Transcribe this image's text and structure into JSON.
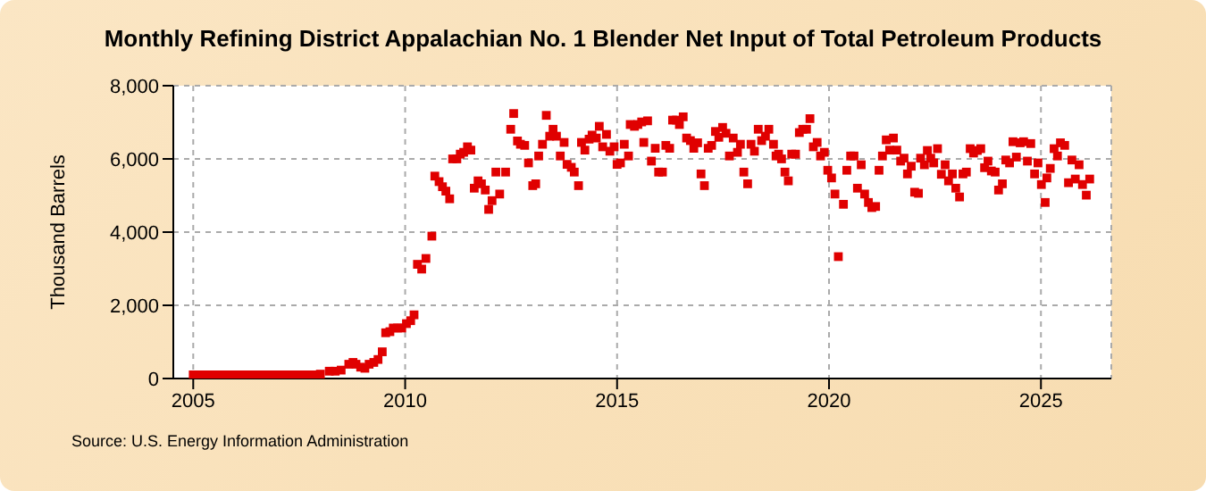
{
  "chart_data": {
    "type": "scatter",
    "title": "Monthly Refining District Appalachian No. 1 Blender Net Input of Total Petroleum Products",
    "ylabel": "Thousand Barrels",
    "annotations": [
      "Source: U.S. Energy Information Administration"
    ],
    "xlim": [
      2004.53,
      2026.66
    ],
    "xticks": [
      2005,
      2010,
      2015,
      2020,
      2025
    ],
    "ylim": [
      0,
      8000
    ],
    "yticks": [
      {
        "value": 0,
        "label": "0"
      },
      {
        "value": 2000,
        "label": "2,000"
      },
      {
        "value": 4000,
        "label": "4,000"
      },
      {
        "value": 6000,
        "label": "6,000"
      },
      {
        "value": 8000,
        "label": "8,000"
      }
    ],
    "grid": true,
    "marker": "square",
    "legend": false,
    "series": [
      {
        "color": "#e00000",
        "x": [
          2005.0,
          2005.17,
          2005.33,
          2005.5,
          2005.67,
          2005.83,
          2006.0,
          2006.17,
          2006.33,
          2006.5,
          2006.67,
          2006.83,
          2007.0,
          2007.17,
          2007.33,
          2007.5,
          2007.67,
          2007.83,
          2008.0,
          2008.21,
          2008.35,
          2008.49,
          2008.67,
          2008.77,
          2008.84,
          2008.95,
          2009.05,
          2009.15,
          2009.26,
          2009.36,
          2009.46,
          2009.54,
          2009.64,
          2009.72,
          2009.82,
          2009.92,
          2010.03,
          2010.13,
          2010.21,
          2010.29,
          2010.39,
          2010.49,
          2010.63,
          2010.7,
          2010.8,
          2010.88,
          2010.96,
          2011.05,
          2011.12,
          2011.22,
          2011.3,
          2011.38,
          2011.47,
          2011.55,
          2011.63,
          2011.72,
          2011.8,
          2011.89,
          2011.97,
          2012.05,
          2012.14,
          2012.23,
          2012.37,
          2012.49,
          2012.56,
          2012.65,
          2012.72,
          2012.82,
          2012.91,
          2013.01,
          2013.08,
          2013.15,
          2013.24,
          2013.33,
          2013.41,
          2013.49,
          2013.57,
          2013.66,
          2013.75,
          2013.82,
          2013.92,
          2013.99,
          2014.09,
          2014.16,
          2014.24,
          2014.34,
          2014.41,
          2014.51,
          2014.58,
          2014.66,
          2014.75,
          2014.83,
          2014.93,
          2015.0,
          2015.08,
          2015.17,
          2015.27,
          2015.31,
          2015.41,
          2015.49,
          2015.58,
          2015.63,
          2015.72,
          2015.81,
          2015.9,
          2015.98,
          2016.07,
          2016.15,
          2016.24,
          2016.31,
          2016.4,
          2016.47,
          2016.56,
          2016.64,
          2016.73,
          2016.81,
          2016.9,
          2016.98,
          2017.06,
          2017.15,
          2017.23,
          2017.32,
          2017.4,
          2017.49,
          2017.57,
          2017.65,
          2017.74,
          2017.84,
          2017.91,
          2017.99,
          2018.08,
          2018.16,
          2018.24,
          2018.33,
          2018.41,
          2018.5,
          2018.58,
          2018.69,
          2018.75,
          2018.81,
          2018.88,
          2018.96,
          2019.04,
          2019.12,
          2019.21,
          2019.3,
          2019.38,
          2019.47,
          2019.55,
          2019.63,
          2019.72,
          2019.8,
          2019.89,
          2019.97,
          2020.06,
          2020.14,
          2020.22,
          2020.34,
          2020.42,
          2020.51,
          2020.59,
          2020.67,
          2020.76,
          2020.84,
          2020.93,
          2021.01,
          2021.1,
          2021.18,
          2021.26,
          2021.35,
          2021.43,
          2021.52,
          2021.6,
          2021.69,
          2021.77,
          2021.85,
          2021.94,
          2022.02,
          2022.11,
          2022.16,
          2022.25,
          2022.32,
          2022.4,
          2022.47,
          2022.56,
          2022.65,
          2022.74,
          2022.82,
          2022.91,
          2022.99,
          2023.08,
          2023.16,
          2023.24,
          2023.33,
          2023.41,
          2023.5,
          2023.58,
          2023.67,
          2023.75,
          2023.83,
          2023.92,
          2024.0,
          2024.09,
          2024.17,
          2024.26,
          2024.34,
          2024.42,
          2024.51,
          2024.59,
          2024.68,
          2024.76,
          2024.85,
          2024.93,
          2025.01,
          2025.1,
          2025.14,
          2025.22,
          2025.31,
          2025.39,
          2025.46,
          2025.56,
          2025.65,
          2025.73,
          2025.81,
          2025.9,
          2025.98,
          2026.07,
          2026.15
        ],
        "values": [
          100,
          100,
          100,
          100,
          100,
          100,
          100,
          100,
          100,
          100,
          100,
          100,
          100,
          100,
          100,
          100,
          100,
          100,
          120,
          200,
          200,
          230,
          390,
          440,
          390,
          310,
          280,
          390,
          440,
          520,
          730,
          1250,
          1280,
          1380,
          1380,
          1380,
          1500,
          1580,
          1740,
          3120,
          2990,
          3280,
          3890,
          5530,
          5380,
          5240,
          5120,
          4910,
          6000,
          6000,
          6130,
          6180,
          6330,
          6240,
          5200,
          5400,
          5320,
          5150,
          4620,
          4860,
          5640,
          5040,
          5640,
          6810,
          7240,
          6490,
          6400,
          6370,
          5890,
          5270,
          5320,
          6080,
          6400,
          7190,
          6620,
          6810,
          6620,
          6080,
          6450,
          5850,
          5770,
          5640,
          5270,
          6450,
          6240,
          6540,
          6650,
          6570,
          6890,
          6330,
          6670,
          6210,
          6330,
          5850,
          5890,
          6400,
          6080,
          6940,
          6890,
          6940,
          7010,
          6450,
          7040,
          5940,
          6290,
          5640,
          5640,
          6370,
          6290,
          7060,
          7060,
          6940,
          7150,
          6570,
          6500,
          6290,
          6440,
          5590,
          5270,
          6290,
          6370,
          6750,
          6590,
          6860,
          6700,
          6080,
          6570,
          6180,
          6400,
          5640,
          5320,
          6400,
          6210,
          6810,
          6500,
          6620,
          6810,
          6400,
          6080,
          6130,
          6000,
          5640,
          5400,
          6130,
          6130,
          6720,
          6810,
          6810,
          7100,
          6330,
          6450,
          6080,
          6180,
          5690,
          5480,
          5040,
          3330,
          4760,
          5690,
          6080,
          6080,
          5200,
          5840,
          5040,
          4810,
          4670,
          4700,
          5690,
          6080,
          6520,
          6240,
          6570,
          6240,
          5940,
          6020,
          5590,
          5800,
          5090,
          5060,
          6020,
          5840,
          6230,
          6020,
          5890,
          6280,
          5580,
          5840,
          5400,
          5590,
          5200,
          4960,
          5590,
          5640,
          6280,
          6160,
          6230,
          6280,
          5760,
          5940,
          5670,
          5640,
          5150,
          5320,
          5970,
          5890,
          6470,
          6050,
          6440,
          6470,
          5940,
          6420,
          5590,
          5890,
          5300,
          4810,
          5480,
          5740,
          6280,
          6080,
          6440,
          6370,
          5350,
          5970,
          5450,
          5840,
          5300,
          5010,
          5450
        ]
      }
    ]
  }
}
